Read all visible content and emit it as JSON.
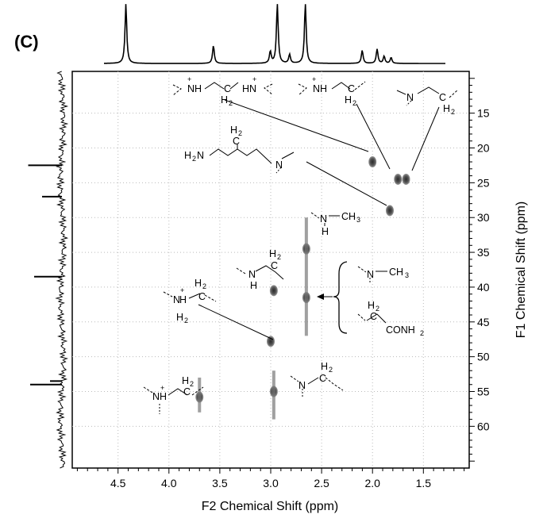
{
  "panel_label": "(C)",
  "chart_data": {
    "type": "scatter",
    "subtype": "2D HSQC NMR spectrum with 1D projections",
    "xlabel": "F2 Chemical Shift (ppm)",
    "ylabel": "F1 Chemical Shift (ppm)",
    "xlim": [
      4.95,
      1.05
    ],
    "ylim": [
      66,
      9
    ],
    "x_axis_reversed": true,
    "y_axis_reversed": true,
    "x_ticks": [
      "4.5",
      "4.0",
      "3.5",
      "3.0",
      "2.5",
      "2.0",
      "1.5"
    ],
    "y_ticks": [
      "15",
      "20",
      "25",
      "30",
      "35",
      "40",
      "45",
      "50",
      "55",
      "60"
    ],
    "grid": "dotted",
    "cross_peaks": [
      {
        "x": 2.0,
        "y": 22.0
      },
      {
        "x": 1.75,
        "y": 24.5
      },
      {
        "x": 1.67,
        "y": 24.5
      },
      {
        "x": 1.83,
        "y": 29.0
      },
      {
        "x": 2.97,
        "y": 40.5
      },
      {
        "x": 2.65,
        "y": 41.5
      },
      {
        "x": 2.65,
        "y": 34.5
      },
      {
        "x": 3.0,
        "y": 47.8
      },
      {
        "x": 3.7,
        "y": 55.8
      },
      {
        "x": 2.97,
        "y": 55.0
      }
    ],
    "proton_projection_peaks": [
      {
        "x": 4.7,
        "h": 1.0
      },
      {
        "x": 3.7,
        "h": 0.3
      },
      {
        "x": 3.05,
        "h": 0.2
      },
      {
        "x": 2.97,
        "h": 1.0
      },
      {
        "x": 2.83,
        "h": 0.15
      },
      {
        "x": 2.65,
        "h": 1.0
      },
      {
        "x": 2.0,
        "h": 0.22
      },
      {
        "x": 1.83,
        "h": 0.24
      },
      {
        "x": 1.75,
        "h": 0.12
      },
      {
        "x": 1.67,
        "h": 0.1
      }
    ],
    "carbon_projection_peaks": [
      {
        "y": 22.5,
        "h": 0.85
      },
      {
        "y": 27.0,
        "h": 0.5
      },
      {
        "y": 38.5,
        "h": 0.7
      },
      {
        "y": 54.0,
        "h": 0.8
      },
      {
        "y": 53.5,
        "h": 0.3
      }
    ]
  },
  "structures": {
    "s1": {
      "t1": "NH",
      "t2": "C",
      "t3": "HN",
      "t4": "H",
      "t5": "2",
      "plus1": "+",
      "plus2": "+"
    },
    "s2": {
      "t1": "NH",
      "t2": "C",
      "t3": "H",
      "t4": "2",
      "plus": "+"
    },
    "s3": {
      "t1": "N",
      "t2": "C",
      "t3": "H",
      "t4": "2"
    },
    "s4": {
      "t1": "H",
      "t2": "2",
      "t3": "N",
      "t4": "H",
      "t5": "2",
      "t6": "C"
    },
    "s5": {
      "t1": "N",
      "t2": "CH",
      "t3": "3",
      "t4": "H"
    },
    "s6": {
      "t1": "H",
      "t2": "2",
      "t3": "N",
      "t4": "C",
      "t5": "H"
    },
    "s7": {
      "t1": "N",
      "t2": "CH",
      "t3": "3",
      "t4": "H",
      "t5": "2",
      "t6": "C",
      "t7": "CONH",
      "t8": "2"
    },
    "s8": {
      "t1": "N",
      "t2": "H",
      "t3": "2",
      "t4": "C",
      "t5": "H",
      "t6": "2",
      "plus": "+"
    },
    "s9": {
      "t1": "NH",
      "t2": "H",
      "t3": "2",
      "t4": "C",
      "plus": "+"
    },
    "s10": {
      "t1": "N",
      "t2": "H",
      "t3": "2",
      "t4": "C"
    }
  }
}
